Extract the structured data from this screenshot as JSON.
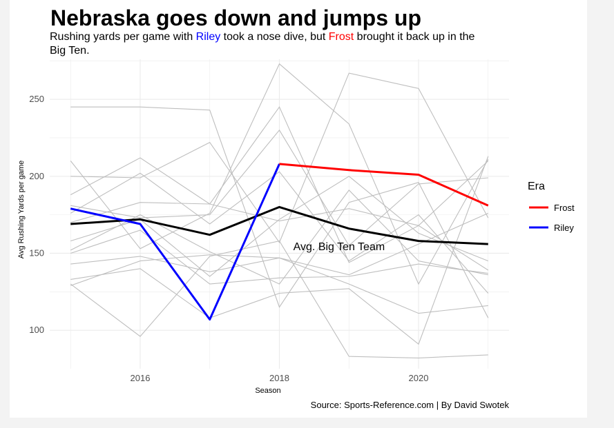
{
  "chart_data": {
    "type": "line",
    "title": "Nebraska goes down and jumps up",
    "subtitle": {
      "line1_parts": [
        {
          "text": "Rushing yards per game with ",
          "color": "#000000"
        },
        {
          "text": "Riley",
          "color": "#0000ff"
        },
        {
          "text": " took a nose dive, but ",
          "color": "#000000"
        },
        {
          "text": "Frost",
          "color": "#ff0000"
        },
        {
          "text": " brought it back up in the",
          "color": "#000000"
        }
      ],
      "line2": "Big Ten."
    },
    "xlabel": "Season",
    "ylabel": "Avg Rushing Yards per game",
    "xlim": [
      2014.7,
      2021.3
    ],
    "ylim": [
      75,
      276
    ],
    "x_ticks": [
      2016,
      2018,
      2020
    ],
    "x_minor": [
      2015,
      2017,
      2019,
      2021
    ],
    "y_ticks": [
      100,
      150,
      200,
      250
    ],
    "y_minor": [
      125,
      175,
      225,
      275
    ],
    "grid": true,
    "colors": {
      "grid": "#ebebeb",
      "other_teams": "#bebebe",
      "average": "#000000",
      "frost": "#ff0000",
      "riley": "#0000ff"
    },
    "x": [
      2015,
      2016,
      2017,
      2018,
      2019,
      2020,
      2021
    ],
    "background_series": [
      [
        245,
        245,
        243,
        115,
        183,
        196,
        108
      ],
      [
        210,
        153,
        176,
        273,
        234,
        130,
        211
      ],
      [
        200,
        199,
        222,
        157,
        267,
        257,
        173
      ],
      [
        188,
        212,
        182,
        245,
        144,
        168,
        210
      ],
      [
        181,
        173,
        175,
        230,
        155,
        195,
        199
      ],
      [
        176,
        202,
        169,
        203,
        145,
        175,
        124
      ],
      [
        170,
        183,
        182,
        171,
        179,
        168,
        139
      ],
      [
        158,
        172,
        135,
        172,
        200,
        163,
        145
      ],
      [
        152,
        175,
        151,
        130,
        191,
        145,
        136
      ],
      [
        150,
        165,
        130,
        134,
        135,
        143,
        137
      ],
      [
        143,
        148,
        138,
        147,
        130,
        111,
        116
      ],
      [
        133,
        140,
        108,
        124,
        127,
        91,
        213
      ],
      [
        130,
        96,
        148,
        158,
        83,
        82,
        84
      ],
      [
        129,
        145,
        149,
        147,
        136,
        156,
        176
      ]
    ],
    "highlight": {
      "average": {
        "name": "Avg. Big Ten Team",
        "values": [
          169,
          172,
          162,
          180,
          166,
          158,
          156
        ]
      },
      "riley": {
        "name": "Riley",
        "values": [
          179,
          169,
          107,
          208,
          null,
          null,
          null
        ]
      },
      "frost": {
        "name": "Frost",
        "values": [
          null,
          null,
          null,
          208,
          204,
          201,
          181
        ]
      }
    },
    "annotation": {
      "text": "Avg. Big Ten Team",
      "x": 2018.2,
      "y": 152
    },
    "legend": {
      "title": "Era",
      "position": "right",
      "items": [
        {
          "label": "Frost",
          "color": "#ff0000"
        },
        {
          "label": "Riley",
          "color": "#0000ff"
        }
      ]
    },
    "caption": "Source: Sports-Reference.com | By David Swotek"
  }
}
